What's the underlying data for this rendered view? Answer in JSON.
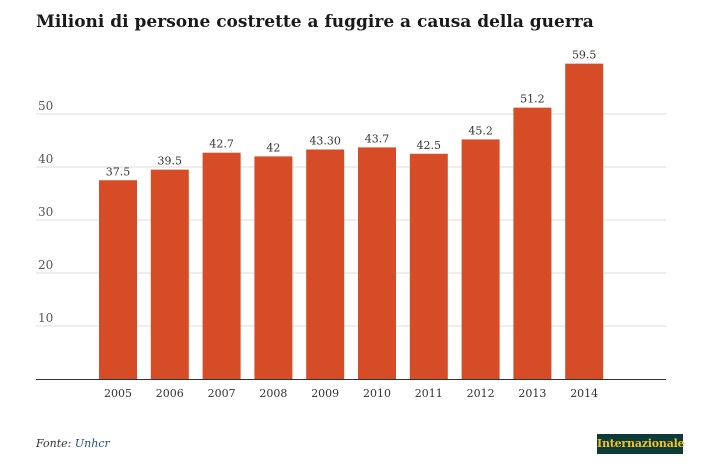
{
  "chart_data": {
    "type": "bar",
    "title": "Milioni di persone costrette a fuggire a causa della guerra",
    "categories": [
      "2005",
      "2006",
      "2007",
      "2008",
      "2009",
      "2010",
      "2011",
      "2012",
      "2013",
      "2014"
    ],
    "values": [
      37.5,
      39.5,
      42.7,
      42,
      43.3,
      43.7,
      42.5,
      45.2,
      51.2,
      59.5
    ],
    "value_labels": [
      "37.5",
      "39.5",
      "42.7",
      "42",
      "43.30",
      "43.7",
      "42.5",
      "45.2",
      "51.2",
      "59.5"
    ],
    "y_ticks": [
      10,
      20,
      30,
      40,
      50
    ],
    "ylim": [
      0,
      60
    ],
    "xlabel": "",
    "ylabel": "",
    "grid": true,
    "legend": "none",
    "bar_color": "#d64c27"
  },
  "footer": {
    "source_prefix": "Fonte: ",
    "source_name": "Unhcr",
    "logo_text": "Internazionale"
  },
  "colors": {
    "bar": "#d64c27",
    "logo_background": "#0d3b3a",
    "logo_text": "#f2c318",
    "source_link": "#1f4e8c"
  }
}
